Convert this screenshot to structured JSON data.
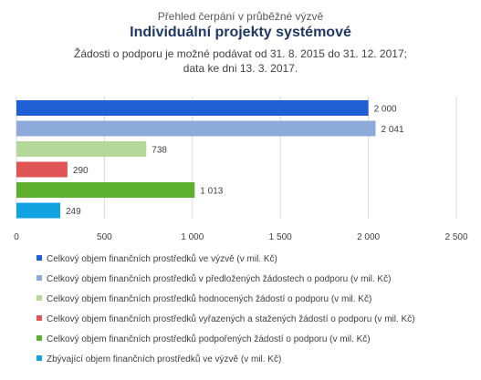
{
  "header": {
    "kicker": "Přehled čerpání v průběžné výzvě",
    "title": "Individuální projekty systémové",
    "subtitle_line1": "Žádosti o podporu je možné podávat od 31. 8. 2015 do 31. 12. 2017;",
    "subtitle_line2": "data ke dni 13. 3. 2017."
  },
  "colors": {
    "axis": "#d9d9d9",
    "grid": "#d9d9d9",
    "text": "#404040"
  },
  "chart_data": {
    "type": "bar",
    "orientation": "horizontal",
    "title": "Individuální projekty systémové",
    "xlim": [
      0,
      2500
    ],
    "x_ticks": [
      0,
      500,
      1000,
      1500,
      2000,
      2500
    ],
    "x_tick_labels": [
      "0",
      "500",
      "1 000",
      "1 500",
      "2 000",
      "2 500"
    ],
    "grid": true,
    "legend_position": "bottom",
    "series": [
      {
        "name": "Celkový objem finančních prostředků ve výzvě (v mil. Kč)",
        "value": 2000,
        "label": "2 000",
        "color": "#1f5fd6"
      },
      {
        "name": "Celkový objem finančních prostředků v předložených žádostech o podporu (v mil. Kč)",
        "value": 2041,
        "label": "2 041",
        "color": "#8eaadb"
      },
      {
        "name": "Celkový objem finančních prostředků hodnocených žádostí o podporu (v mil. Kč)",
        "value": 738,
        "label": "738",
        "color": "#b4d79a"
      },
      {
        "name": "Celkový objem finančních prostředků vyřazených a stažených žádostí o podporu (v mil. Kč)",
        "value": 290,
        "label": "290",
        "color": "#e05555"
      },
      {
        "name": "Celkový objem finančních prostředků podpořených žádostí o podporu (v mil. Kč)",
        "value": 1013,
        "label": "1 013",
        "color": "#5db02e"
      },
      {
        "name": "Zbývající objem finančních prostředků ve výzvě (v mil. Kč)",
        "value": 249,
        "label": "249",
        "color": "#12a3e0"
      }
    ]
  }
}
